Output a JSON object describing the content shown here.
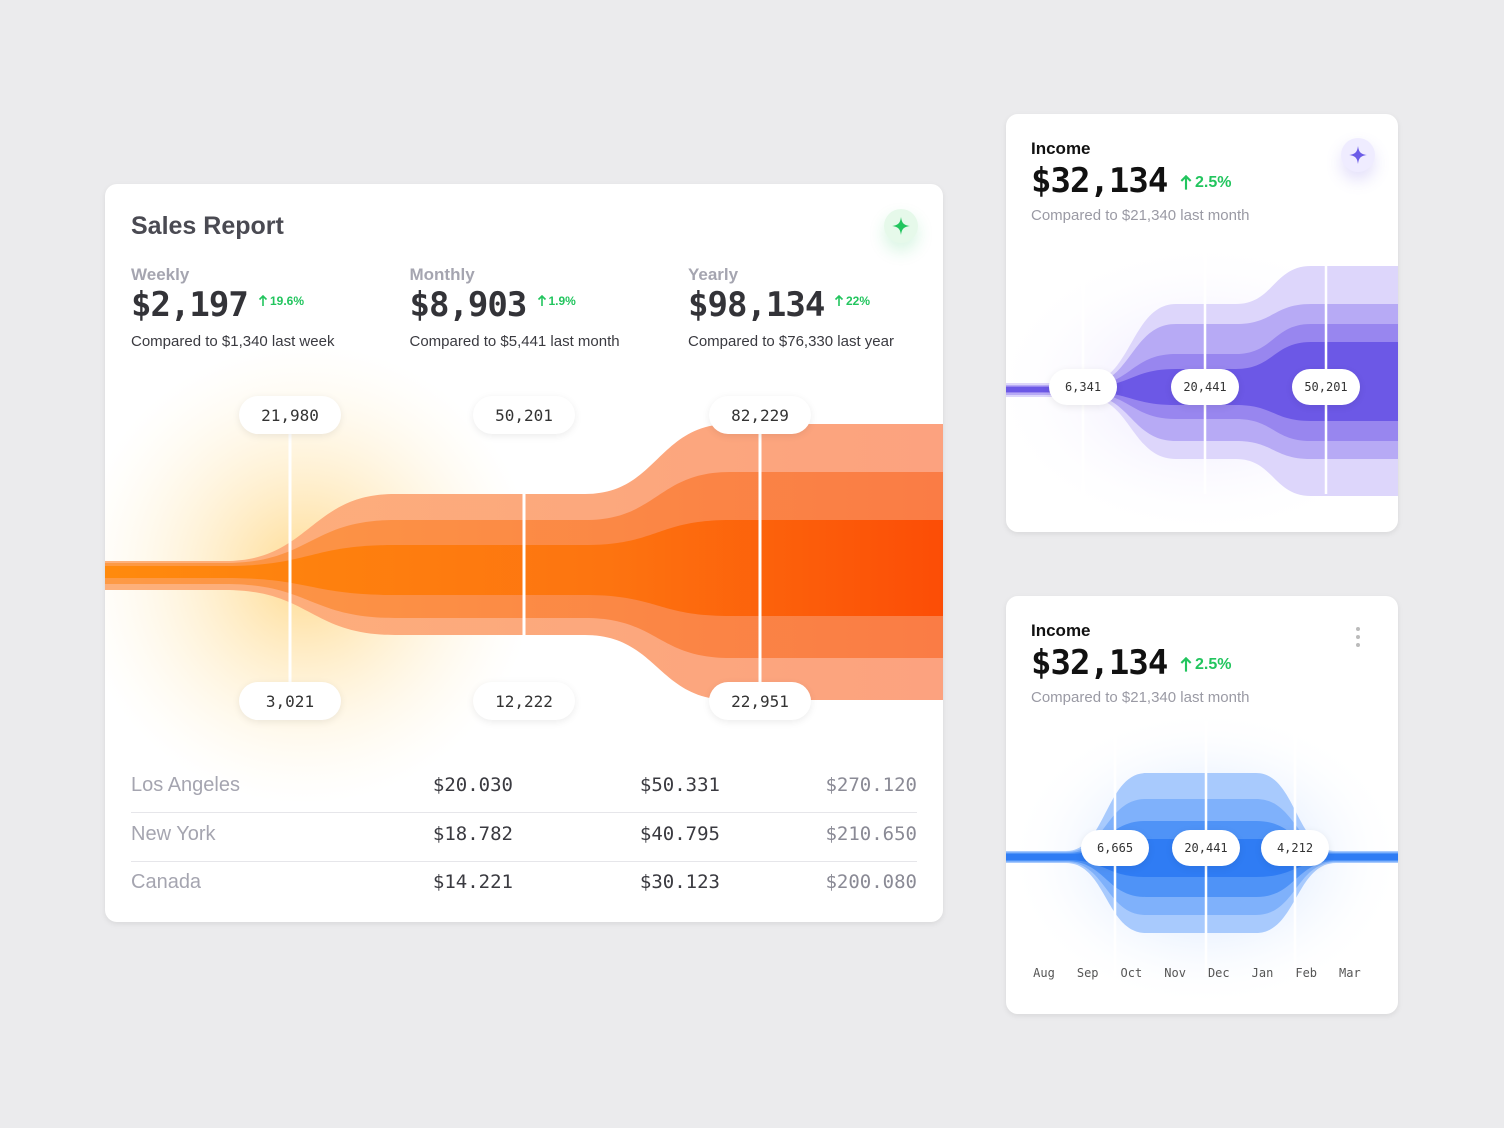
{
  "sales_report": {
    "title": "Sales Report",
    "metrics": [
      {
        "label": "Weekly",
        "value": "$2,197",
        "change": "19.6%",
        "comparison": "Compared to $1,340 last week"
      },
      {
        "label": "Monthly",
        "value": "$8,903",
        "change": "1.9%",
        "comparison": "Compared to $5,441 last month"
      },
      {
        "label": "Yearly",
        "value": "$98,134",
        "change": "22%",
        "comparison": "Compared to $76,330 last year"
      }
    ],
    "funnel_labels": {
      "top": [
        "21,980",
        "50,201",
        "82,229"
      ],
      "bottom": [
        "3,021",
        "12,222",
        "22,951"
      ]
    },
    "table": {
      "rows": [
        [
          "Los Angeles",
          "$20.030",
          "$50.331",
          "$270.120"
        ],
        [
          "New York",
          "$18.782",
          "$40.795",
          "$210.650"
        ],
        [
          "Canada",
          "$14.221",
          "$30.123",
          "$200.080"
        ]
      ]
    }
  },
  "income_cards": [
    {
      "title": "Income",
      "value": "$32,134",
      "change": "2.5%",
      "comparison": "Compared to $21,340 last month",
      "markers": [
        "6,341",
        "20,441",
        "50,201"
      ]
    },
    {
      "title": "Income",
      "value": "$32,134",
      "change": "2.5%",
      "comparison": "Compared to $21,340 last month",
      "markers": [
        "6,665",
        "20,441",
        "4,212"
      ],
      "months": [
        "Aug",
        "Sep",
        "Oct",
        "Nov",
        "Dec",
        "Jan",
        "Feb",
        "Mar"
      ]
    }
  ]
}
